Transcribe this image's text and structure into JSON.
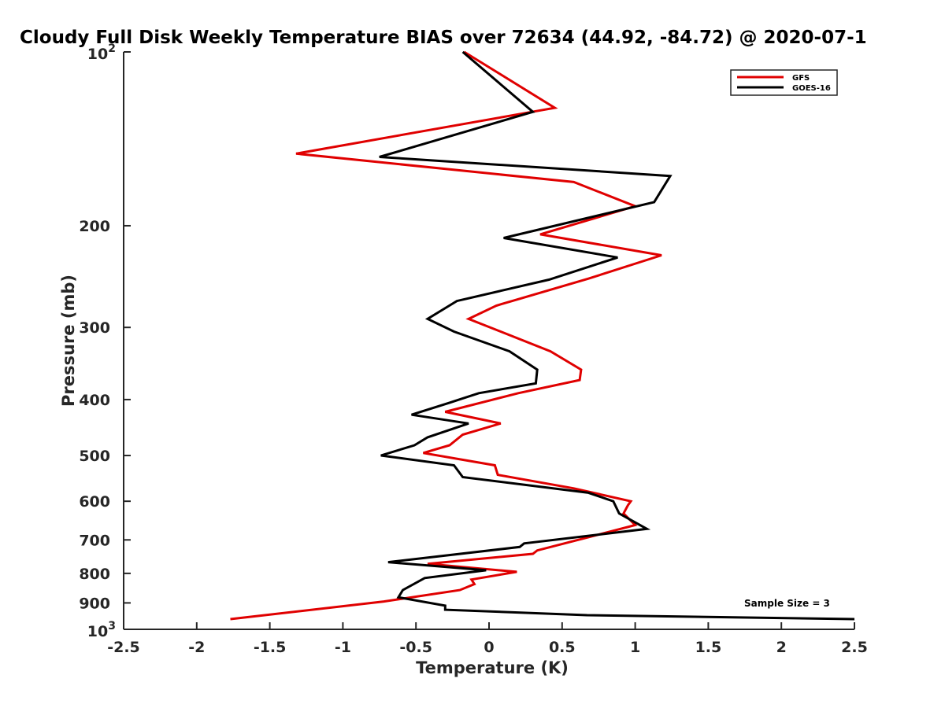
{
  "chart_data": {
    "type": "line",
    "title": "Cloudy Full Disk Weekly Temperature BIAS over 72634 (44.92, -84.72) @ 2020-07-1",
    "xlabel": "Temperature (K)",
    "ylabel": "Pressure (mb)",
    "xlim": [
      -2.5,
      2.5
    ],
    "ylim": [
      100,
      1000
    ],
    "y_scale": "log",
    "y_reversed": true,
    "grid": false,
    "legend_position": "top-right",
    "x_ticks": [
      "-2.5",
      "-2",
      "-1.5",
      "-1",
      "-0.5",
      "0",
      "0.5",
      "1",
      "1.5",
      "2",
      "2.5"
    ],
    "y_ticks": [
      {
        "value": 100,
        "base": "10",
        "exp": "2"
      },
      {
        "value": 200,
        "label": "200"
      },
      {
        "value": 300,
        "label": "300"
      },
      {
        "value": 400,
        "label": "400"
      },
      {
        "value": 500,
        "label": "500"
      },
      {
        "value": 600,
        "label": "600"
      },
      {
        "value": 700,
        "label": "700"
      },
      {
        "value": 800,
        "label": "800"
      },
      {
        "value": 900,
        "label": "900"
      },
      {
        "value": 1000,
        "base": "10",
        "exp": "3"
      }
    ],
    "annotation": "Sample Size = 3",
    "series": [
      {
        "name": "GFS",
        "color": "#e00000",
        "points": [
          [
            -0.17,
            100
          ],
          [
            0.45,
            125
          ],
          [
            -1.32,
            150
          ],
          [
            0.58,
            168
          ],
          [
            1.0,
            185
          ],
          [
            0.35,
            207
          ],
          [
            1.18,
            225
          ],
          [
            0.68,
            247
          ],
          [
            0.05,
            275
          ],
          [
            -0.14,
            290
          ],
          [
            0.08,
            305
          ],
          [
            0.42,
            330
          ],
          [
            0.63,
            355
          ],
          [
            0.62,
            370
          ],
          [
            0.2,
            390
          ],
          [
            -0.3,
            420
          ],
          [
            0.08,
            440
          ],
          [
            -0.18,
            460
          ],
          [
            -0.27,
            480
          ],
          [
            -0.45,
            495
          ],
          [
            0.04,
            520
          ],
          [
            0.06,
            540
          ],
          [
            0.58,
            570
          ],
          [
            0.97,
            600
          ],
          [
            0.95,
            610
          ],
          [
            0.92,
            630
          ],
          [
            1.0,
            660
          ],
          [
            0.33,
            730
          ],
          [
            0.3,
            740
          ],
          [
            -0.42,
            770
          ],
          [
            0.19,
            795
          ],
          [
            -0.12,
            820
          ],
          [
            -0.1,
            835
          ],
          [
            -0.2,
            855
          ],
          [
            -0.72,
            895
          ],
          [
            -1.77,
            960
          ]
        ]
      },
      {
        "name": "GOES-16",
        "color": "#000000",
        "points": [
          [
            -0.18,
            100
          ],
          [
            0.3,
            127
          ],
          [
            -0.75,
            152
          ],
          [
            1.24,
            164
          ],
          [
            1.13,
            182
          ],
          [
            0.1,
            210
          ],
          [
            0.88,
            227
          ],
          [
            0.41,
            248
          ],
          [
            -0.22,
            270
          ],
          [
            -0.42,
            290
          ],
          [
            -0.24,
            305
          ],
          [
            0.14,
            330
          ],
          [
            0.33,
            355
          ],
          [
            0.32,
            375
          ],
          [
            -0.07,
            390
          ],
          [
            -0.27,
            405
          ],
          [
            -0.53,
            425
          ],
          [
            -0.14,
            440
          ],
          [
            -0.42,
            465
          ],
          [
            -0.51,
            480
          ],
          [
            -0.74,
            500
          ],
          [
            -0.24,
            520
          ],
          [
            -0.18,
            545
          ],
          [
            0.68,
            580
          ],
          [
            0.85,
            600
          ],
          [
            0.89,
            630
          ],
          [
            1.08,
            670
          ],
          [
            0.24,
            710
          ],
          [
            0.21,
            720
          ],
          [
            -0.69,
            765
          ],
          [
            -0.02,
            790
          ],
          [
            -0.44,
            815
          ],
          [
            -0.59,
            855
          ],
          [
            -0.62,
            880
          ],
          [
            -0.3,
            910
          ],
          [
            -0.3,
            925
          ],
          [
            0.67,
            945
          ],
          [
            2.5,
            960
          ]
        ]
      }
    ]
  }
}
